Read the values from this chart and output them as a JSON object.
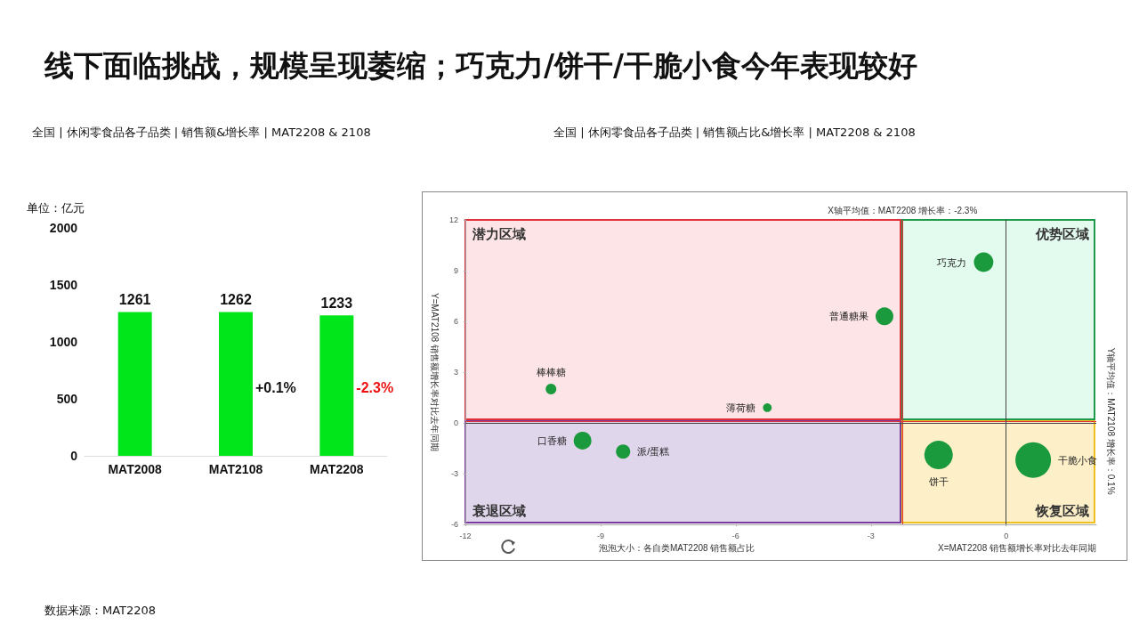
{
  "chart_data": [
    {
      "type": "bar",
      "title": "线下面临挑战，规模呈现萎缩；巧克力/饼干/干脆小食今年表现较好",
      "subtitle": "全国 | 休闲零食品各子品类 | 销售额&增长率 | MAT2208 & 2108",
      "ylabel": "单位：亿元",
      "categories": [
        "MAT2008",
        "MAT2108",
        "MAT2208"
      ],
      "values": [
        1261,
        1262,
        1233
      ],
      "color": "#00e61a",
      "ylim": [
        0,
        2000
      ],
      "yticks": [
        0,
        500,
        1000,
        1500,
        2000
      ],
      "grid": false,
      "data_labels": true,
      "annotations": [
        "+0.1%",
        "-2.3%",
        "数据来源：MAT2208"
      ]
    },
    {
      "type": "bubble",
      "title": "全国 | 休闲零食品各子品类 | 销售额占比&增长率 | MAT2208 & 2108",
      "xlabel": "X=MAT2208 销售额增长率对比去年同期",
      "ylabel": "Y=MAT2108 销售额增长率对比去年同期",
      "xlim": [
        -12,
        2
      ],
      "xticks": [
        -12,
        -9,
        -6,
        -3,
        0
      ],
      "ylim": [
        -6,
        12
      ],
      "yticks": [
        -6,
        -3,
        0,
        3,
        6,
        9,
        12
      ],
      "grid": false,
      "series": [
        {
          "name": "棒棒糖",
          "color": "#1a9a3c",
          "x": [
            -10.1
          ],
          "values": [
            2.0
          ],
          "sizes": [
            0.09
          ]
        },
        {
          "name": "薄荷糖",
          "color": "#1a9a3c",
          "x": [
            -5.3
          ],
          "values": [
            0.9
          ],
          "sizes": [
            0.06
          ]
        },
        {
          "name": "口香糖",
          "color": "#1a9a3c",
          "x": [
            -9.4
          ],
          "values": [
            -1.05
          ],
          "sizes": [
            0.25
          ]
        },
        {
          "name": "派/蛋糕",
          "color": "#1a9a3c",
          "x": [
            -8.5
          ],
          "values": [
            -1.7
          ],
          "sizes": [
            0.16
          ]
        },
        {
          "name": "普通糖果",
          "color": "#1a9a3c",
          "x": [
            -2.7
          ],
          "values": [
            6.3
          ],
          "sizes": [
            0.25
          ]
        },
        {
          "name": "巧克力",
          "color": "#1a9a3c",
          "x": [
            -0.5
          ],
          "values": [
            9.5
          ],
          "sizes": [
            0.3
          ]
        },
        {
          "name": "饼干",
          "color": "#1a9a3c",
          "x": [
            -1.5
          ],
          "values": [
            -1.9
          ],
          "sizes": [
            0.64
          ]
        },
        {
          "name": "干脆小食",
          "color": "#1a9a3c",
          "x": [
            0.6
          ],
          "values": [
            -2.2
          ],
          "sizes": [
            1
          ]
        }
      ],
      "ref_lines": [
        {
          "axis": "x",
          "value": -2.3,
          "label": "X轴平均值：MAT2208 增长率：-2.3%",
          "color": "#e0303a"
        },
        {
          "axis": "y",
          "value": 0.1,
          "label": "Y轴平均值：MAT2108 增长率：0.1%",
          "color": "#e0303a"
        },
        {
          "axis": "x",
          "value": 0,
          "color": "#444444"
        },
        {
          "axis": "y",
          "value": 0,
          "color": "#444444"
        }
      ],
      "annotations": [
        "潜力区域",
        "优势区域",
        "衰退区域",
        "恢复区域",
        "泡泡大小：各自类MAT2208 销售额占比"
      ]
    }
  ]
}
